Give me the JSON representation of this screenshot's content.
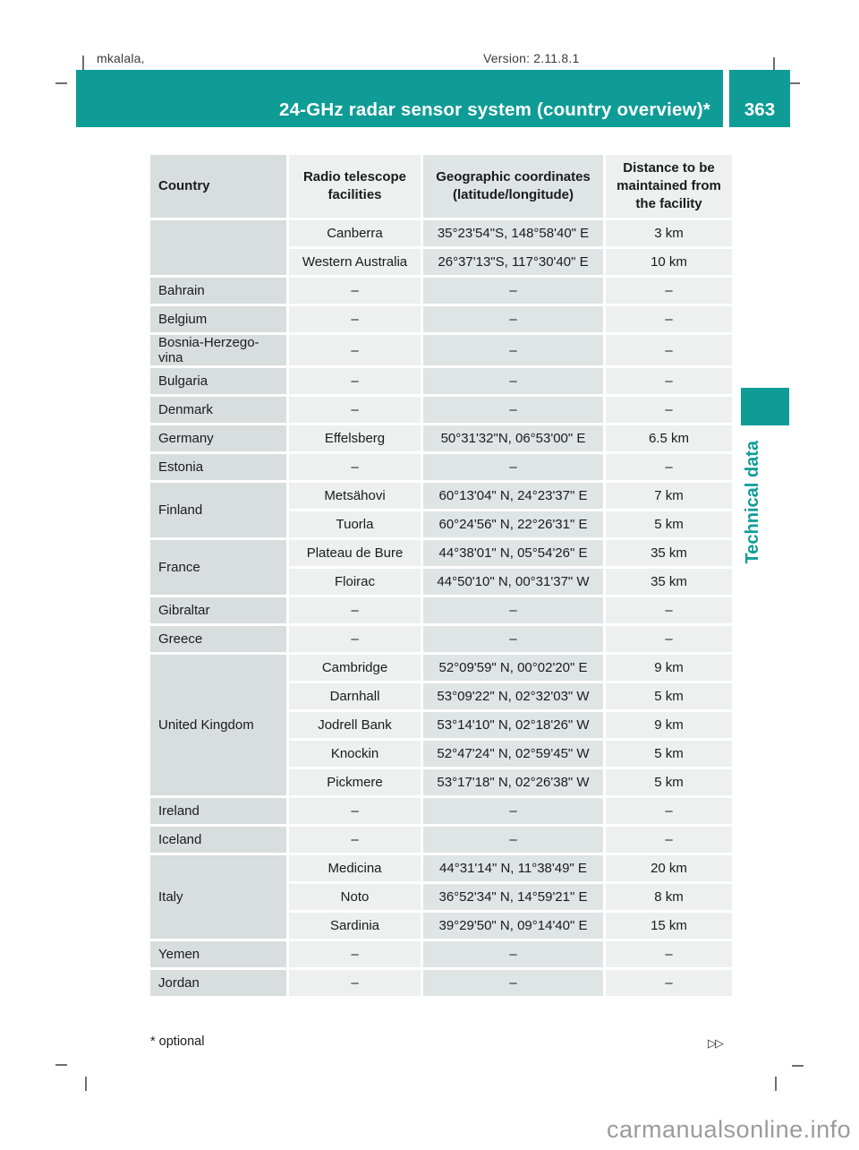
{
  "page": {
    "top_left_text": "mkalala,",
    "top_right_text": "Version: 2.11.8.1",
    "accent_color": "#0f9c97",
    "footnote": "* optional",
    "continuation_symbol": "▷▷",
    "watermark": "carmanualsonline.info"
  },
  "header": {
    "title": "24-GHz radar sensor system (country overview)*",
    "page_number": "363"
  },
  "side_tab": {
    "label": "Technical data"
  },
  "table": {
    "columns": [
      "Country",
      "Radio telescope facilities",
      "Geographic coordinates (latitude/longitude)",
      "Distance to be maintained from the facility"
    ],
    "groups": [
      {
        "country": "",
        "rows": [
          [
            "Canberra",
            "35°23'54\"S, 148°58'40\" E",
            "3 km"
          ],
          [
            "Western Australia",
            "26°37'13\"S, 117°30'40\" E",
            "10 km"
          ]
        ]
      },
      {
        "country": "Bahrain",
        "rows": [
          [
            "–",
            "–",
            "–"
          ]
        ]
      },
      {
        "country": "Belgium",
        "rows": [
          [
            "–",
            "–",
            "–"
          ]
        ]
      },
      {
        "country": "Bosnia-Herzego-\nvina",
        "rows": [
          [
            "–",
            "–",
            "–"
          ]
        ]
      },
      {
        "country": "Bulgaria",
        "rows": [
          [
            "–",
            "–",
            "–"
          ]
        ]
      },
      {
        "country": "Denmark",
        "rows": [
          [
            "–",
            "–",
            "–"
          ]
        ]
      },
      {
        "country": "Germany",
        "rows": [
          [
            "Effelsberg",
            "50°31'32\"N, 06°53'00\" E",
            "6.5 km"
          ]
        ]
      },
      {
        "country": "Estonia",
        "rows": [
          [
            "–",
            "–",
            "–"
          ]
        ]
      },
      {
        "country": "Finland",
        "rows": [
          [
            "Metsähovi",
            "60°13'04\" N, 24°23'37\" E",
            "7 km"
          ],
          [
            "Tuorla",
            "60°24'56\" N, 22°26'31\" E",
            "5 km"
          ]
        ]
      },
      {
        "country": "France",
        "rows": [
          [
            "Plateau de Bure",
            "44°38'01\" N, 05°54'26\" E",
            "35 km"
          ],
          [
            "Floirac",
            "44°50'10\" N, 00°31'37\" W",
            "35 km"
          ]
        ]
      },
      {
        "country": "Gibraltar",
        "rows": [
          [
            "–",
            "–",
            "–"
          ]
        ]
      },
      {
        "country": "Greece",
        "rows": [
          [
            "–",
            "–",
            "–"
          ]
        ]
      },
      {
        "country": "United Kingdom",
        "rows": [
          [
            "Cambridge",
            "52°09'59\" N, 00°02'20\" E",
            "9 km"
          ],
          [
            "Darnhall",
            "53°09'22\" N, 02°32'03\" W",
            "5 km"
          ],
          [
            "Jodrell Bank",
            "53°14'10\" N, 02°18'26\" W",
            "9 km"
          ],
          [
            "Knockin",
            "52°47'24\" N, 02°59'45\" W",
            "5 km"
          ],
          [
            "Pickmere",
            "53°17'18\" N, 02°26'38\" W",
            "5 km"
          ]
        ]
      },
      {
        "country": "Ireland",
        "rows": [
          [
            "–",
            "–",
            "–"
          ]
        ]
      },
      {
        "country": "Iceland",
        "rows": [
          [
            "–",
            "–",
            "–"
          ]
        ]
      },
      {
        "country": "Italy",
        "rows": [
          [
            "Medicina",
            "44°31'14\" N, 11°38'49\" E",
            "20 km"
          ],
          [
            "Noto",
            "36°52'34\" N, 14°59'21\" E",
            "8 km"
          ],
          [
            "Sardinia",
            "39°29'50\" N, 09°14'40\" E",
            "15 km"
          ]
        ]
      },
      {
        "country": "Yemen",
        "rows": [
          [
            "–",
            "–",
            "–"
          ]
        ]
      },
      {
        "country": "Jordan",
        "rows": [
          [
            "–",
            "–",
            "–"
          ]
        ]
      }
    ]
  }
}
